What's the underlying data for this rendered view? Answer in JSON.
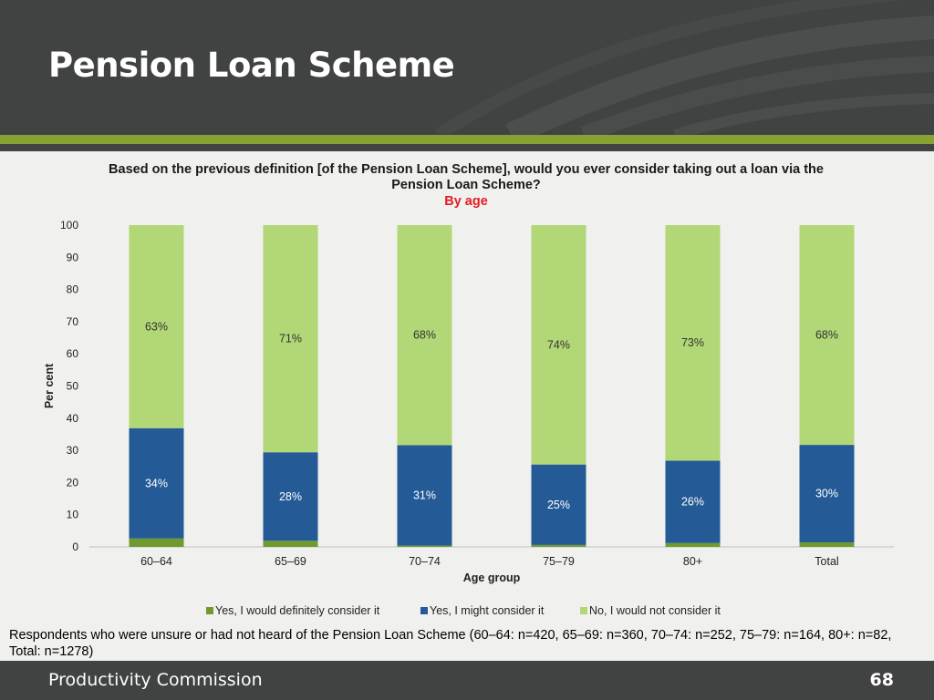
{
  "slide": {
    "title": "Pension Loan Scheme",
    "footnote": "Respondents who were unsure or had not heard of the Pension Loan Scheme (60–64: n=420, 65–69: n=360, 70–74: n=252, 75–79: n=164, 80+: n=82, Total: n=1278)",
    "footer_org": "Productivity Commission",
    "page_number": "68"
  },
  "colors": {
    "header_bg": "#414242",
    "accent_green": "#87a230",
    "subtitle_red": "#e31b23"
  },
  "chart_data": {
    "type": "bar",
    "stacked": true,
    "title": "Based on the previous definition [of the Pension Loan Scheme], would you ever consider taking out a loan via the Pension Loan Scheme?",
    "subtitle": "By age",
    "xlabel": "Age group",
    "ylabel": "Per cent",
    "ylim": [
      0,
      100
    ],
    "yticks": [
      0,
      10,
      20,
      30,
      40,
      50,
      60,
      70,
      80,
      90,
      100
    ],
    "categories": [
      "60–64",
      "65–69",
      "70–74",
      "75–79",
      "80+",
      "Total"
    ],
    "legend_position": "bottom",
    "series": [
      {
        "name": "Yes, I would definitely consider it",
        "color": "#6e9a2e",
        "values": [
          2.6,
          1.9,
          0.4,
          0.6,
          1.2,
          1.4
        ],
        "labels": [
          "",
          "",
          "",
          "",
          "",
          ""
        ]
      },
      {
        "name": "Yes, I might consider it",
        "color": "#245a96",
        "values": [
          34.3,
          27.5,
          31.2,
          25,
          25.6,
          30.3
        ],
        "labels": [
          "34%",
          "28%",
          "31%",
          "25%",
          "26%",
          "30%"
        ]
      },
      {
        "name": "No, I would not consider it",
        "color": "#b2d776",
        "values": [
          63.1,
          70.6,
          68.4,
          74.4,
          73.2,
          68.3
        ],
        "labels": [
          "63%",
          "71%",
          "68%",
          "74%",
          "73%",
          "68%"
        ]
      }
    ]
  }
}
